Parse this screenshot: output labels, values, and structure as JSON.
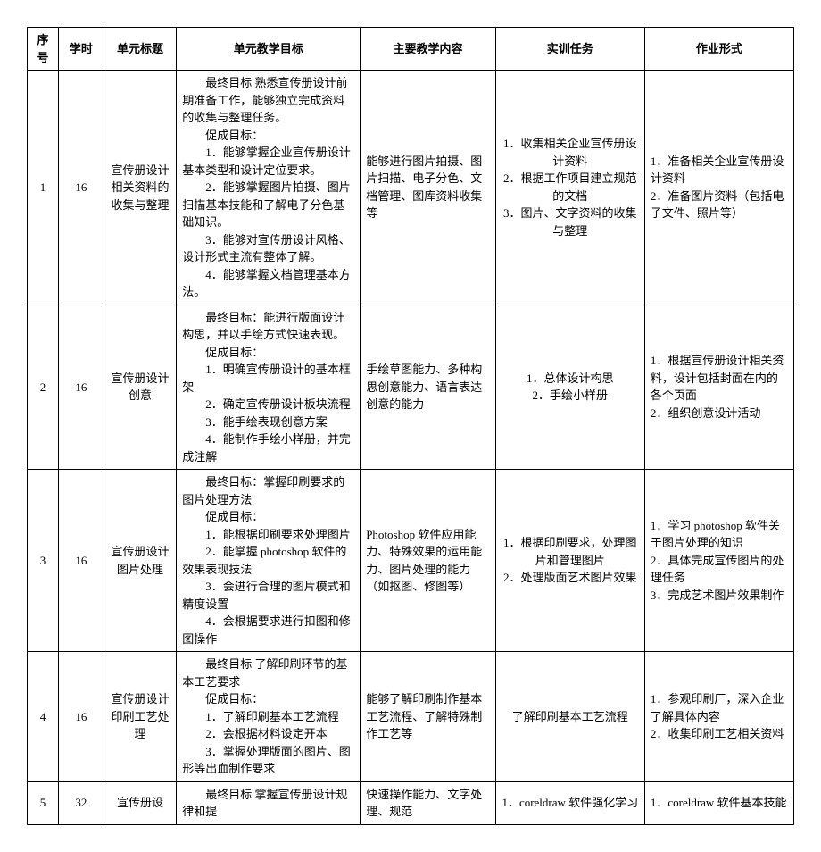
{
  "headers": {
    "seq": "序号",
    "hours": "学时",
    "unit_title": "单元标题",
    "unit_goal": "单元教学目标",
    "main_content": "主要教学内容",
    "training_task": "实训任务",
    "homework": "作业形式"
  },
  "rows": [
    {
      "seq": "1",
      "hours": "16",
      "title": "宣传册设计相关资料的收集与整理",
      "goal_pre": "最终目标 熟悉宣传册设计前期准备工作，能够独立完成资料的收集与整理任务。",
      "goal_label": "促成目标：",
      "goals": [
        "1．能够掌握企业宣传册设计基本类型和设计定位要求。",
        "2．能够掌握图片拍摄、图片扫描基本技能和了解电子分色基础知识。",
        "3．能够对宣传册设计风格、设计形式主流有整体了解。",
        "4．能够掌握文档管理基本方法。"
      ],
      "content": "能够进行图片拍摄、图片扫描、电子分色、文档管理、图库资料收集等",
      "tasks": [
        "1．收集相关企业宣传册设计资料",
        "2．根据工作项目建立规范的文档",
        "3．图片、文字资料的收集与整理"
      ],
      "homework": [
        "1．准备相关企业宣传册设计资料",
        "2．准备图片资料（包括电子文件、照片等）"
      ]
    },
    {
      "seq": "2",
      "hours": "16",
      "title": "宣传册设计创意",
      "goal_pre": "最终目标：能进行版面设计构思，并以手绘方式快速表现。",
      "goal_label": "促成目标：",
      "goals": [
        "1．明确宣传册设计的基本框架",
        "2．确定宣传册设计板块流程",
        "3．能手绘表现创意方案",
        "4．能制作手绘小样册，并完成注解"
      ],
      "content": "手绘草图能力、多种构思创意能力、语言表达创意的能力",
      "tasks": [
        "1．总体设计构思",
        "2．手绘小样册"
      ],
      "homework": [
        "1．根据宣传册设计相关资料，设计包括封面在内的各个页面",
        "2．组织创意设计活动"
      ]
    },
    {
      "seq": "3",
      "hours": "16",
      "title": "宣传册设计图片处理",
      "goal_pre": "最终目标：掌握印刷要求的图片处理方法",
      "goal_label": "促成目标：",
      "goals": [
        "1．能根据印刷要求处理图片",
        "2．能掌握 photoshop 软件的效果表现技法",
        "3．会进行合理的图片模式和精度设置",
        "4．会根据要求进行扣图和修图操作"
      ],
      "content": "Photoshop 软件应用能力、特殊效果的运用能力、图片处理的能力（如抠图、修图等）",
      "tasks": [
        "1．根据印刷要求，处理图片和管理图片",
        "2．处理版面艺术图片效果"
      ],
      "homework": [
        "1．学习 photoshop 软件关于图片处理的知识",
        "2．具体完成宣传图片的处理任务",
        "3．完成艺术图片效果制作"
      ]
    },
    {
      "seq": "4",
      "hours": "16",
      "title": "宣传册设计印刷工艺处理",
      "goal_pre": "最终目标 了解印刷环节的基本工艺要求",
      "goal_label": "促成目标：",
      "goals": [
        "1．了解印刷基本工艺流程",
        "2．会根据材料设定开本",
        "3．掌握处理版面的图片、图形等出血制作要求"
      ],
      "content": "能够了解印刷制作基本工艺流程、了解特殊制作工艺等",
      "tasks_plain": "了解印刷基本工艺流程",
      "homework": [
        "1．参观印刷厂，深入企业了解具体内容",
        "2．收集印刷工艺相关资料"
      ]
    },
    {
      "seq": "5",
      "hours": "32",
      "title": "宣传册设",
      "goal_pre": "最终目标 掌握宣传册设计规律和提",
      "content": "快速操作能力、文字处理、规范",
      "tasks_plain": "1．coreldraw 软件强化学习",
      "homework_plain": "1．coreldraw 软件基本技能"
    }
  ]
}
